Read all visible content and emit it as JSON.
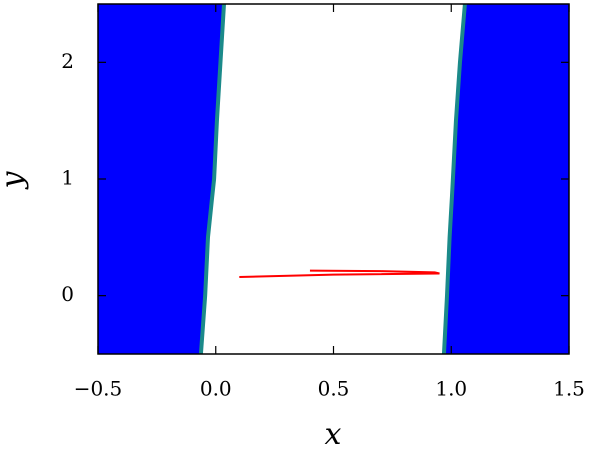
{
  "chart_data": {
    "type": "region",
    "xlabel": "x",
    "ylabel": "y",
    "xlim": [
      -0.5,
      1.5
    ],
    "ylim": [
      -0.5,
      2.5
    ],
    "xticks": [
      {
        "value": -0.5,
        "label": "−0.5"
      },
      {
        "value": 0,
        "label": "0.0"
      },
      0.5,
      {
        "value": 1,
        "label": "1.0"
      },
      1.5
    ],
    "yticks": [
      0,
      1,
      2
    ],
    "regions": [
      {
        "side": "left",
        "color": "#0000ff",
        "edge_color": "#1b8a8a",
        "x": [
          -0.063,
          -0.045,
          -0.033,
          -0.015,
          -0.007,
          0.005,
          0.02,
          0.035
        ],
        "y": [
          -0.5,
          0.0,
          0.5,
          0.85,
          1.0,
          1.5,
          2.0,
          2.5
        ]
      },
      {
        "side": "right",
        "color": "#0000ff",
        "edge_color": "#1b8a8a",
        "x": [
          0.969,
          0.982,
          0.993,
          1.003,
          1.007,
          1.02,
          1.037,
          1.058
        ],
        "y": [
          -0.5,
          0.0,
          0.5,
          0.85,
          1.0,
          1.5,
          2.0,
          2.5
        ]
      }
    ],
    "trajectory": {
      "color": "#ff0000",
      "x": [
        0.1,
        0.5,
        0.95,
        0.93,
        0.7,
        0.4
      ],
      "y": [
        0.16,
        0.18,
        0.19,
        0.2,
        0.21,
        0.215
      ]
    }
  }
}
